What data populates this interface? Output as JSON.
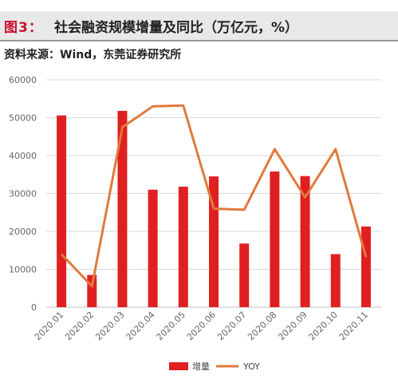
{
  "header": {
    "figure_label": "图3：",
    "title": "社会融资规模增量及同比（万亿元，%）",
    "source": "资料来源：Wind，东莞证券研究所"
  },
  "chart_data": {
    "type": "bar",
    "categories": [
      "2020.01",
      "2020.02",
      "2020.03",
      "2020.04",
      "2020.05",
      "2020.06",
      "2020.07",
      "2020.08",
      "2020.09",
      "2020.10",
      "2020.11"
    ],
    "series": [
      {
        "name": "增量",
        "type": "bar",
        "color": "#e02020",
        "values": [
          50600,
          8500,
          51800,
          31000,
          31800,
          34500,
          16800,
          35800,
          34600,
          14000,
          21300
        ]
      },
      {
        "name": "YOY",
        "type": "line",
        "color": "#e07a3c",
        "values": [
          14000,
          5500,
          47500,
          53000,
          53200,
          26000,
          25700,
          41700,
          29000,
          41700,
          13200
        ]
      }
    ],
    "ylim": [
      0,
      60000
    ],
    "yticks": [
      0,
      10000,
      20000,
      30000,
      40000,
      50000,
      60000
    ],
    "grid": true,
    "legend_position": "bottom-center"
  }
}
